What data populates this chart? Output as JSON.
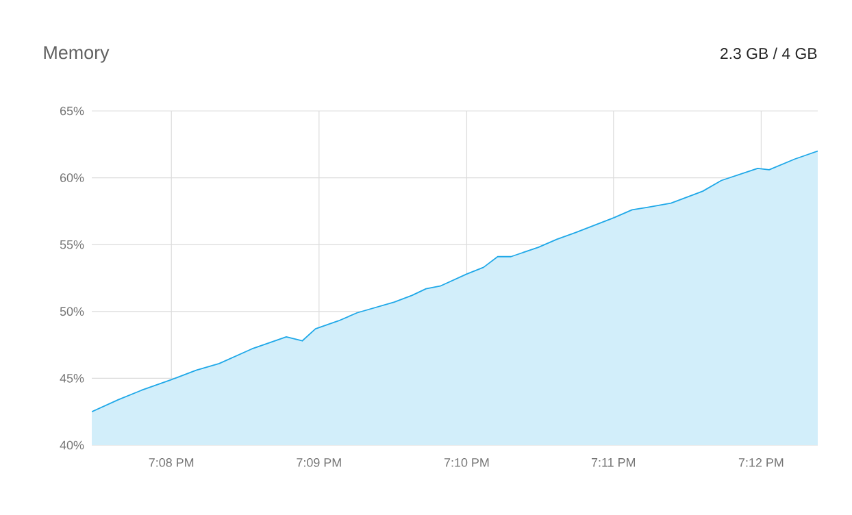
{
  "chart_data": {
    "type": "area",
    "title": "Memory",
    "subtitle": "2.3 GB / 4 GB",
    "x": [
      19.1243,
      19.1273,
      19.1299,
      19.1333,
      19.1361,
      19.1387,
      19.1424,
      19.1463,
      19.1481,
      19.1496,
      19.1522,
      19.1543,
      19.1585,
      19.1605,
      19.1621,
      19.1637,
      19.1667,
      19.1686,
      19.1702,
      19.1717,
      19.1748,
      19.1769,
      19.179,
      19.1833,
      19.1854,
      19.1872,
      19.1898,
      19.1914,
      19.1934,
      19.1955,
      19.1996,
      19.2009,
      19.2038,
      19.2064
    ],
    "series": [
      {
        "color": "#1fa8e8",
        "values": [
          42.5,
          43.4,
          44.1,
          44.9,
          45.6,
          46.1,
          47.2,
          48.1,
          47.8,
          48.7,
          49.3,
          49.9,
          50.7,
          51.2,
          51.7,
          51.9,
          52.8,
          53.3,
          54.1,
          54.1,
          54.8,
          55.4,
          55.9,
          57.0,
          57.6,
          57.8,
          58.1,
          58.5,
          59.0,
          59.8,
          60.7,
          60.6,
          61.4,
          62.0
        ]
      }
    ],
    "xlim": [
      19.1243,
      19.2064
    ],
    "xticks": [
      {
        "value": 19.1333,
        "label": "7:08 PM"
      },
      {
        "value": 19.15,
        "label": "7:09 PM"
      },
      {
        "value": 19.1667,
        "label": "7:10 PM"
      },
      {
        "value": 19.1833,
        "label": "7:11 PM"
      },
      {
        "value": 19.2,
        "label": "7:12 PM"
      }
    ],
    "ylim": [
      40,
      65
    ],
    "yticks": [
      {
        "value": 40,
        "label": "40%"
      },
      {
        "value": 45,
        "label": "45%"
      },
      {
        "value": 50,
        "label": "50%"
      },
      {
        "value": 55,
        "label": "55%"
      },
      {
        "value": 60,
        "label": "60%"
      },
      {
        "value": 65,
        "label": "65%"
      }
    ],
    "grid": true
  }
}
